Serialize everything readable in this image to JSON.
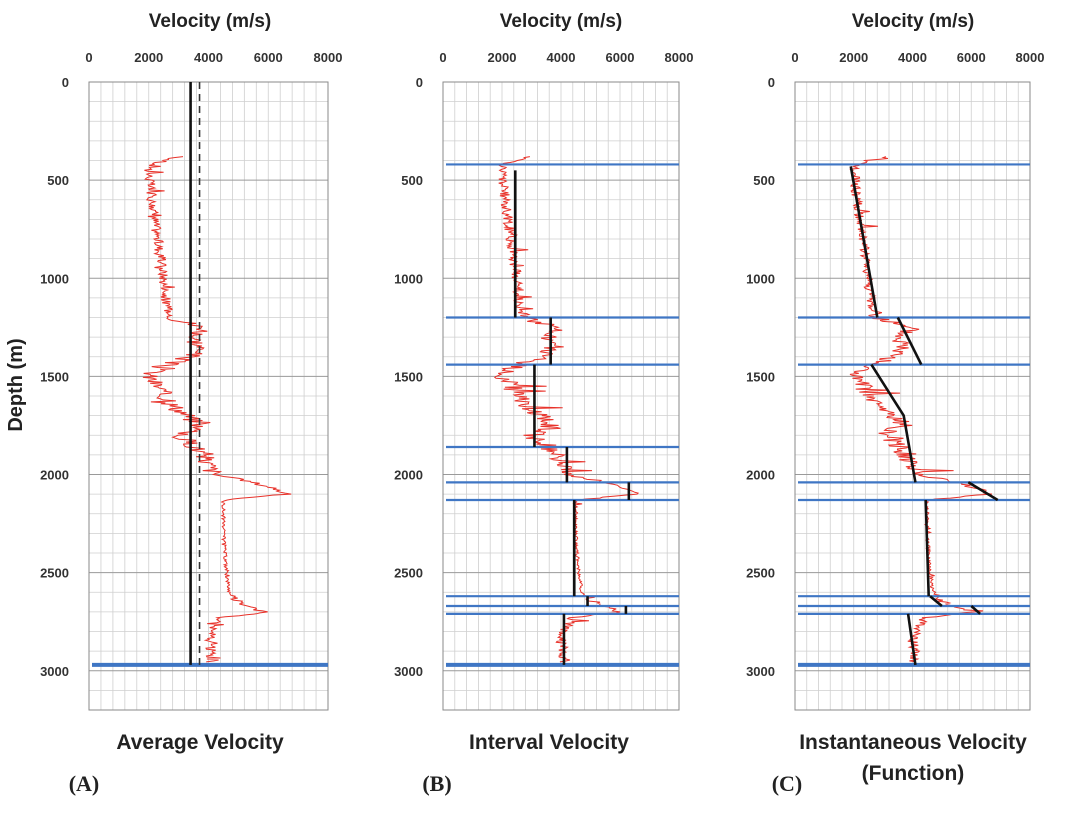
{
  "figure": {
    "ylabel": "Depth (m)",
    "panels": [
      {
        "key": "A",
        "label": "(A)",
        "xlabel": "Velocity (m/s)",
        "caption": [
          "Average Velocity"
        ]
      },
      {
        "key": "B",
        "label": "(B)",
        "xlabel": "Velocity (m/s)",
        "caption": [
          "Interval Velocity"
        ]
      },
      {
        "key": "C",
        "label": "(C)",
        "xlabel": "Velocity (m/s)",
        "caption": [
          "Instantaneous Velocity",
          "(Function)"
        ]
      }
    ]
  },
  "chart_data": [
    {
      "type": "line",
      "panel": "A",
      "title": "Average Velocity",
      "xlabel": "Velocity (m/s)",
      "ylabel": "Depth (m)",
      "xlim": [
        0,
        8000
      ],
      "ylim": [
        3200,
        0
      ],
      "y_inverted": true,
      "xticks": [
        0,
        2000,
        4000,
        6000,
        8000
      ],
      "yticks": [
        0,
        500,
        1000,
        1500,
        2000,
        2500,
        3000
      ],
      "grid": true,
      "series": [
        {
          "kind": "well_log",
          "color": "#e8322a",
          "depth": [
            380,
            420,
            450,
            600,
            800,
            1000,
            1150,
            1200,
            1260,
            1300,
            1350,
            1400,
            1450,
            1500,
            1550,
            1600,
            1650,
            1700,
            1750,
            1800,
            1850,
            1900,
            1950,
            2000,
            2030,
            2070,
            2100,
            2130,
            2200,
            2300,
            2400,
            2500,
            2600,
            2650,
            2700,
            2730,
            2800,
            2850,
            2900,
            2960
          ],
          "velocity": [
            3000,
            2100,
            2000,
            2100,
            2300,
            2500,
            2600,
            2800,
            3900,
            3500,
            3700,
            3400,
            2400,
            2000,
            2300,
            2500,
            2800,
            3300,
            3700,
            3000,
            3500,
            3800,
            4000,
            4200,
            5200,
            6200,
            6600,
            4500,
            4500,
            4500,
            4550,
            4600,
            4700,
            5000,
            6000,
            4400,
            4100,
            4000,
            4100,
            4000
          ]
        },
        {
          "kind": "average_velocity",
          "style": "solid",
          "color": "#111111",
          "depth": [
            0,
            2970
          ],
          "velocity": [
            3400,
            3400
          ]
        },
        {
          "kind": "average_velocity",
          "style": "dashed",
          "color": "#333333",
          "depth": [
            0,
            2970
          ],
          "velocity": [
            3700,
            3700
          ]
        }
      ],
      "horizons_m": [
        2970
      ]
    },
    {
      "type": "line",
      "panel": "B",
      "title": "Interval Velocity",
      "xlabel": "Velocity (m/s)",
      "ylabel": "Depth (m)",
      "xlim": [
        0,
        8000
      ],
      "ylim": [
        3200,
        0
      ],
      "y_inverted": true,
      "xticks": [
        0,
        2000,
        4000,
        6000,
        8000
      ],
      "yticks": [
        0,
        500,
        1000,
        1500,
        2000,
        2500,
        3000
      ],
      "grid": true,
      "series": [
        {
          "kind": "well_log",
          "color": "#e8322a",
          "same_as_panel": "A"
        },
        {
          "kind": "interval_velocity",
          "color": "#111111",
          "segments": [
            {
              "top": 450,
              "base": 1200,
              "velocity": 2450
            },
            {
              "top": 1200,
              "base": 1440,
              "velocity": 3650
            },
            {
              "top": 1440,
              "base": 1860,
              "velocity": 3100
            },
            {
              "top": 1860,
              "base": 2040,
              "velocity": 4200
            },
            {
              "top": 2040,
              "base": 2130,
              "velocity": 6300
            },
            {
              "top": 2130,
              "base": 2620,
              "velocity": 4450
            },
            {
              "top": 2620,
              "base": 2670,
              "velocity": 4900
            },
            {
              "top": 2670,
              "base": 2710,
              "velocity": 6200
            },
            {
              "top": 2710,
              "base": 2970,
              "velocity": 4100
            }
          ]
        }
      ],
      "horizons_m": [
        420,
        1200,
        1440,
        1860,
        2040,
        2130,
        2620,
        2670,
        2710,
        2970
      ]
    },
    {
      "type": "line",
      "panel": "C",
      "title": "Instantaneous Velocity (Function)",
      "xlabel": "Velocity (m/s)",
      "ylabel": "Depth (m)",
      "xlim": [
        0,
        8000
      ],
      "ylim": [
        3200,
        0
      ],
      "y_inverted": true,
      "xticks": [
        0,
        2000,
        4000,
        6000,
        8000
      ],
      "yticks": [
        0,
        500,
        1000,
        1500,
        2000,
        2500,
        3000
      ],
      "grid": true,
      "series": [
        {
          "kind": "well_log",
          "color": "#e8322a",
          "same_as_panel": "A"
        },
        {
          "kind": "velocity_function",
          "color": "#111111",
          "segments": [
            {
              "depth": [
                430,
                1200
              ],
              "velocity": [
                1900,
                2800
              ]
            },
            {
              "depth": [
                1200,
                1440
              ],
              "velocity": [
                3500,
                4300
              ]
            },
            {
              "depth": [
                1440,
                1700,
                2040
              ],
              "velocity": [
                2600,
                3700,
                4100
              ]
            },
            {
              "depth": [
                2040,
                2130
              ],
              "velocity": [
                5900,
                6900
              ]
            },
            {
              "depth": [
                2130,
                2620
              ],
              "velocity": [
                4450,
                4550
              ]
            },
            {
              "depth": [
                2620,
                2670
              ],
              "velocity": [
                4600,
                5000
              ]
            },
            {
              "depth": [
                2670,
                2710
              ],
              "velocity": [
                6000,
                6300
              ]
            },
            {
              "depth": [
                2710,
                2970
              ],
              "velocity": [
                3850,
                4100
              ]
            }
          ]
        }
      ],
      "horizons_m": [
        420,
        1200,
        1440,
        2040,
        2130,
        2620,
        2670,
        2710,
        2970
      ]
    }
  ]
}
